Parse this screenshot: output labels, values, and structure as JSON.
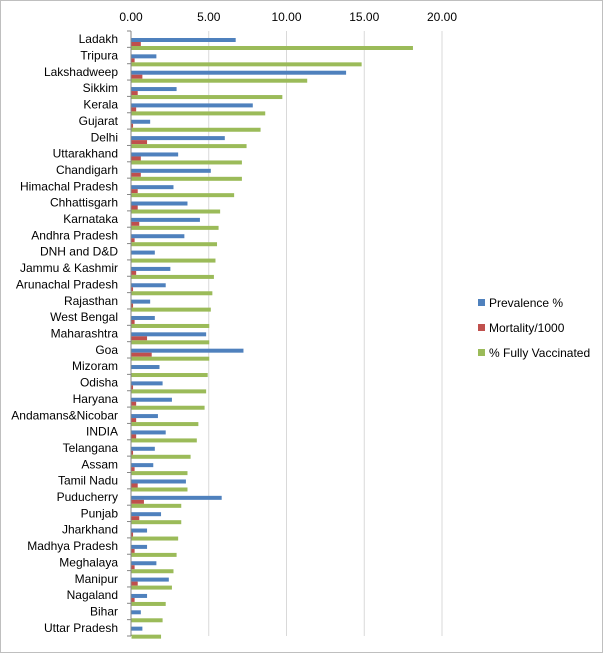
{
  "chart_data": {
    "type": "bar",
    "orientation": "horizontal",
    "title": "",
    "xlabel": "",
    "ylabel": "",
    "xlim": [
      0,
      20
    ],
    "x_ticks": [
      "0.00",
      "5.00",
      "10.00",
      "15.00",
      "20.00"
    ],
    "x_axis_position": "top",
    "grid": true,
    "legend_position": "right",
    "categories": [
      "Ladakh",
      "Tripura",
      "Lakshadweep",
      "Sikkim",
      "Kerala",
      "Gujarat",
      "Delhi",
      "Uttarakhand",
      "Chandigarh",
      "Himachal Pradesh",
      "Chhattisgarh",
      "Karnataka",
      "Andhra Pradesh",
      "DNH and D&D",
      "Jammu & Kashmir",
      "Arunachal Pradesh",
      "Rajasthan",
      "West Bengal",
      "Maharashtra",
      "Goa",
      "Mizoram",
      "Odisha",
      "Haryana",
      "Andamans&Nicobar",
      "INDIA",
      "Telangana",
      "Assam",
      "Tamil Nadu",
      "Puducherry",
      "Punjab",
      "Jharkhand",
      "Madhya Pradesh",
      "Meghalaya",
      "Manipur",
      "Nagaland",
      "Bihar",
      "Uttar Pradesh"
    ],
    "series": [
      {
        "name": "Prevalence %",
        "color": "#4f81bd",
        "values": [
          6.7,
          1.6,
          13.8,
          2.9,
          7.8,
          1.2,
          6.0,
          3.0,
          5.1,
          2.7,
          3.6,
          4.4,
          3.4,
          1.5,
          2.5,
          2.2,
          1.2,
          1.5,
          4.8,
          7.2,
          1.8,
          2.0,
          2.6,
          1.7,
          2.2,
          1.5,
          1.4,
          3.5,
          5.8,
          1.9,
          1.0,
          1.0,
          1.6,
          2.4,
          1.0,
          0.6,
          0.7
        ]
      },
      {
        "name": "Mortality/1000",
        "color": "#c0504d",
        "values": [
          0.6,
          0.2,
          0.7,
          0.4,
          0.3,
          0.1,
          1.0,
          0.6,
          0.6,
          0.4,
          0.4,
          0.5,
          0.2,
          0.0,
          0.3,
          0.1,
          0.1,
          0.2,
          1.0,
          1.3,
          0.0,
          0.1,
          0.3,
          0.3,
          0.3,
          0.1,
          0.2,
          0.4,
          0.8,
          0.5,
          0.1,
          0.2,
          0.2,
          0.4,
          0.2,
          0.0,
          0.0
        ]
      },
      {
        "name": "% Fully Vaccinated",
        "color": "#9bbb59",
        "values": [
          18.1,
          14.8,
          11.3,
          9.7,
          8.6,
          8.3,
          7.4,
          7.1,
          7.1,
          6.6,
          5.7,
          5.6,
          5.5,
          5.4,
          5.3,
          5.2,
          5.1,
          5.0,
          5.0,
          5.0,
          4.9,
          4.8,
          4.7,
          4.3,
          4.2,
          3.8,
          3.6,
          3.6,
          3.2,
          3.2,
          3.0,
          2.9,
          2.7,
          2.6,
          2.2,
          2.0,
          1.9
        ]
      }
    ]
  }
}
